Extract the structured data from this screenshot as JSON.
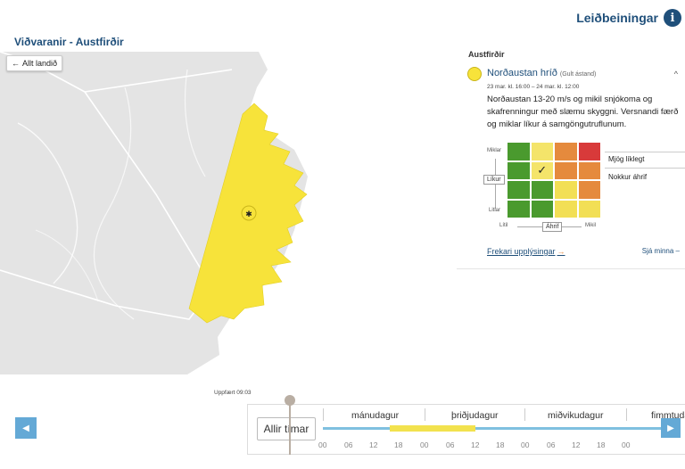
{
  "header": {
    "help_label": "Leiðbeiningar",
    "help_icon": "info-icon",
    "page_title": "Viðvaranir - Austfirðir"
  },
  "map": {
    "back_label": "Allt landið",
    "back_icon": "arrow-left-icon",
    "warning_area_color": "#f7e33a",
    "land_color": "#e4e4e4"
  },
  "panel": {
    "region": "Austfirðir",
    "warning": {
      "title": "Norðaustan hríð",
      "level": "(Gult ástand)",
      "time": "23 mar. kl. 16:00 – 24 mar. kl. 12:00",
      "description": "Norðaustan 13-20 m/s og mikil snjókoma og skafrenningur með slæmu skyggni. Versnandi færð og miklar líkur á samgöngutruflunum.",
      "icon": "snow-wind-icon"
    },
    "matrix": {
      "y_top": "Miklar",
      "y_label": "Líkur",
      "y_bottom": "Litlar",
      "x_left": "Lítil",
      "x_label": "Áhrif",
      "x_right": "Mikil",
      "likelihood_legend": "Mjög líklegt",
      "impact_legend": "Nokkur áhrif",
      "selected_mark": "✓"
    },
    "more_info_label": "Frekari upplýsingar",
    "show_less_label": "Sjá minna –"
  },
  "timeline": {
    "updated": "Uppfært 09:03",
    "all_times_label": "Allir tímar",
    "days": [
      "mánudagur",
      "þriðjudagur",
      "miðvikudagur",
      "fimmtudagur"
    ],
    "hours": [
      "00",
      "06",
      "12",
      "18",
      "00",
      "06",
      "12",
      "18",
      "00",
      "06",
      "12",
      "18",
      "00"
    ]
  }
}
